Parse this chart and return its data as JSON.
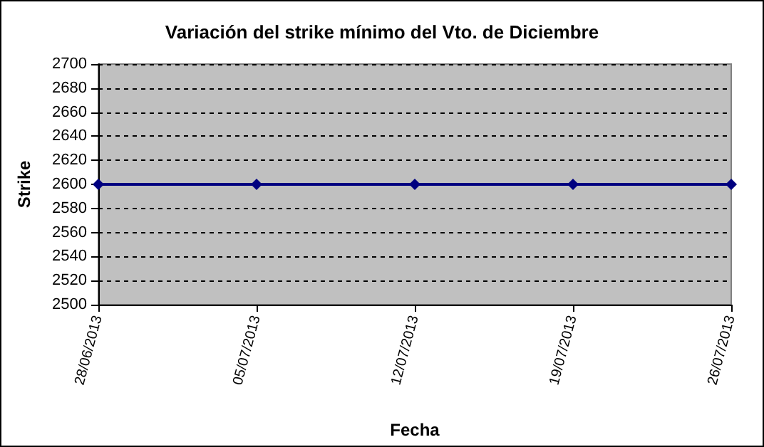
{
  "chart_data": {
    "type": "line",
    "title": "Variación del strike mínimo del Vto. de Diciembre",
    "xlabel": "Fecha",
    "ylabel": "Strike",
    "categories": [
      "28/06/2013",
      "05/07/2013",
      "12/07/2013",
      "19/07/2013",
      "26/07/2013"
    ],
    "series": [
      {
        "color": "#000080",
        "values": [
          2600,
          2600,
          2600,
          2600,
          2600
        ]
      }
    ],
    "ylim": [
      2500,
      2700
    ],
    "yticks": [
      2500,
      2520,
      2540,
      2560,
      2580,
      2600,
      2620,
      2640,
      2660,
      2680,
      2700
    ],
    "grid": "y",
    "marker": "diamond",
    "line_style": "solid"
  }
}
